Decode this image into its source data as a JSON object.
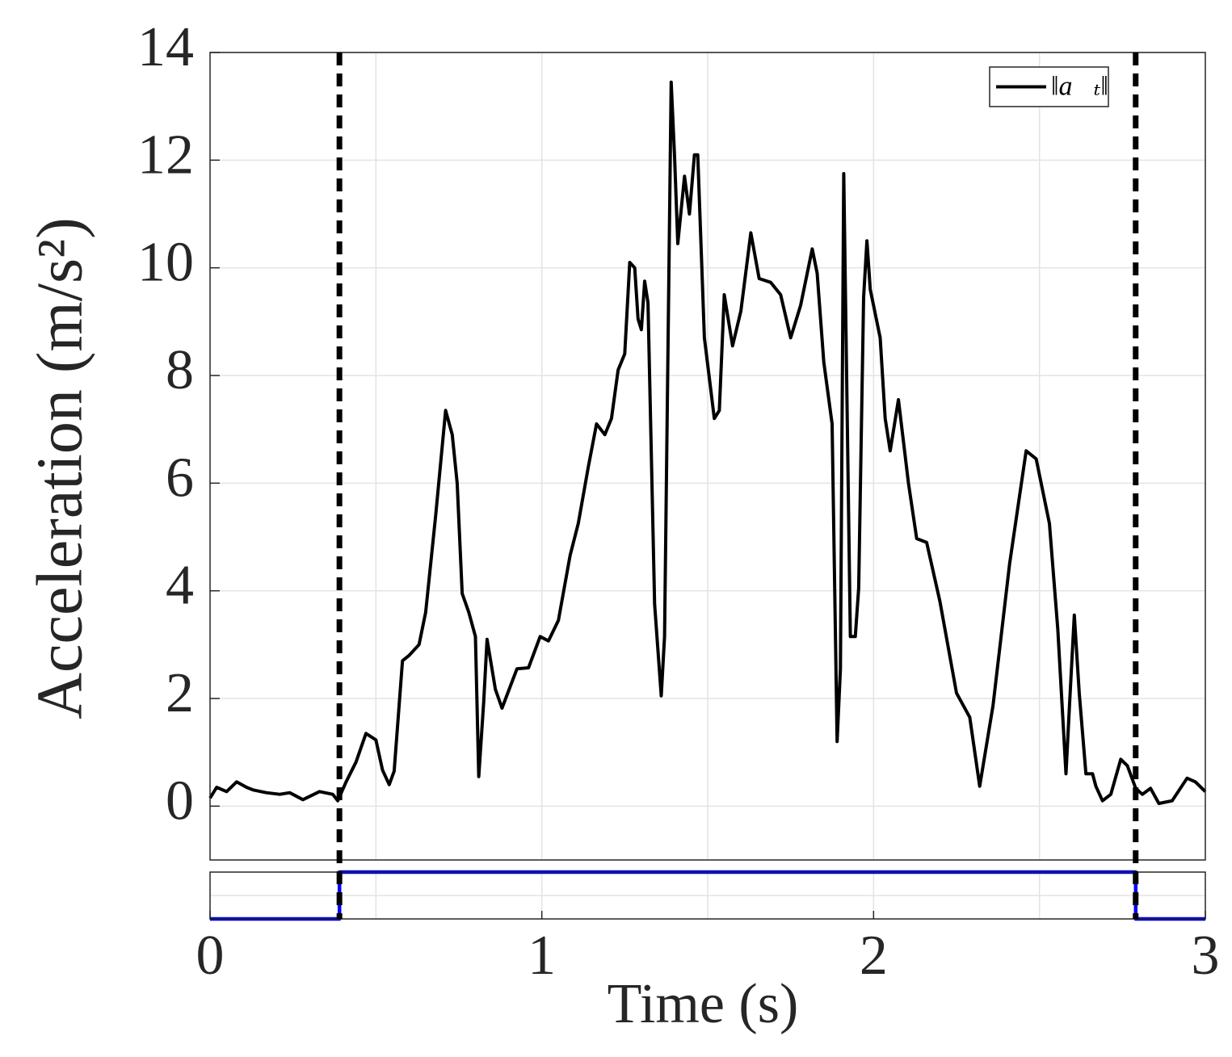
{
  "chart_data": [
    {
      "type": "line",
      "ylabel": "Acceleration (m/s²)",
      "grid": true,
      "legend": "northeast",
      "xlim": [
        0,
        3
      ],
      "ylim": [
        -1,
        14
      ],
      "yticks": [
        0,
        2,
        4,
        6,
        8,
        10,
        12,
        14
      ],
      "xgrid": [
        0.5,
        1,
        1.5,
        2,
        2.5
      ],
      "vlines": [
        0.39,
        2.79
      ],
      "series": [
        {
          "name": "‖a⃗ₜ‖",
          "color": "#000000",
          "x": [
            0,
            0.02,
            0.05,
            0.08,
            0.11,
            0.13,
            0.17,
            0.21,
            0.24,
            0.28,
            0.33,
            0.37,
            0.385,
            0.41,
            0.44,
            0.47,
            0.5,
            0.52,
            0.54,
            0.555,
            0.58,
            0.6,
            0.63,
            0.65,
            0.68,
            0.71,
            0.73,
            0.745,
            0.76,
            0.78,
            0.8,
            0.81,
            0.825,
            0.835,
            0.86,
            0.88,
            0.925,
            0.96,
            0.995,
            1.02,
            1.05,
            1.085,
            1.11,
            1.14,
            1.165,
            1.19,
            1.21,
            1.23,
            1.25,
            1.265,
            1.28,
            1.29,
            1.3,
            1.31,
            1.32,
            1.34,
            1.36,
            1.37,
            1.39,
            1.4,
            1.41,
            1.43,
            1.445,
            1.46,
            1.47,
            1.49,
            1.52,
            1.535,
            1.55,
            1.575,
            1.6,
            1.63,
            1.655,
            1.69,
            1.72,
            1.75,
            1.78,
            1.815,
            1.83,
            1.85,
            1.875,
            1.89,
            1.9,
            1.91,
            1.93,
            1.945,
            1.955,
            1.97,
            1.98,
            1.99,
            2.02,
            2.035,
            2.05,
            2.075,
            2.105,
            2.13,
            2.16,
            2.2,
            2.25,
            2.29,
            2.32,
            2.36,
            2.41,
            2.46,
            2.49,
            2.53,
            2.555,
            2.58,
            2.59,
            2.605,
            2.62,
            2.64,
            2.66,
            2.67,
            2.69,
            2.715,
            2.745,
            2.765,
            2.79,
            2.81,
            2.835,
            2.86,
            2.9,
            2.945,
            2.97,
            3
          ],
          "values": [
            0.15,
            0.35,
            0.27,
            0.45,
            0.35,
            0.3,
            0.25,
            0.22,
            0.25,
            0.12,
            0.27,
            0.22,
            0.1,
            0.45,
            0.82,
            1.35,
            1.23,
            0.67,
            0.4,
            0.65,
            2.7,
            2.8,
            3.0,
            3.6,
            5.4,
            7.35,
            6.9,
            6.0,
            3.95,
            3.6,
            3.15,
            0.55,
            1.95,
            3.1,
            2.17,
            1.82,
            2.55,
            2.57,
            3.15,
            3.07,
            3.45,
            4.65,
            5.25,
            6.3,
            7.1,
            6.9,
            7.2,
            8.1,
            8.4,
            10.1,
            10.0,
            9.05,
            8.85,
            9.75,
            9.35,
            3.75,
            2.05,
            3.15,
            13.45,
            12.1,
            10.45,
            11.7,
            11.0,
            12.1,
            12.1,
            8.7,
            7.2,
            7.35,
            9.5,
            8.55,
            9.2,
            10.65,
            9.8,
            9.73,
            9.5,
            8.7,
            9.3,
            10.35,
            9.9,
            8.25,
            7.1,
            1.2,
            2.55,
            11.75,
            3.15,
            3.15,
            4.05,
            9.45,
            10.5,
            9.6,
            8.7,
            7.2,
            6.6,
            7.55,
            6.0,
            4.97,
            4.9,
            3.8,
            2.1,
            1.65,
            0.37,
            1.87,
            4.5,
            6.6,
            6.45,
            5.25,
            3.3,
            0.6,
            1.8,
            3.55,
            2.1,
            0.6,
            0.6,
            0.37,
            0.1,
            0.22,
            0.87,
            0.75,
            0.33,
            0.22,
            0.33,
            0.05,
            0.1,
            0.52,
            0.45,
            0.27
          ]
        }
      ]
    },
    {
      "type": "line",
      "xlabel": "Time (s)",
      "grid": true,
      "xlim": [
        0,
        3
      ],
      "ylim": [
        0,
        1
      ],
      "xticks": [
        0,
        1,
        2,
        3
      ],
      "xgrid": [
        0.5,
        1,
        1.5,
        2,
        2.5
      ],
      "ygrid": [
        0.5
      ],
      "series": [
        {
          "color": "#0000ff",
          "x": [
            0,
            0.39,
            0.39,
            2.79,
            2.79,
            3
          ],
          "values": [
            0,
            0,
            1,
            1,
            0,
            0
          ]
        }
      ]
    }
  ]
}
